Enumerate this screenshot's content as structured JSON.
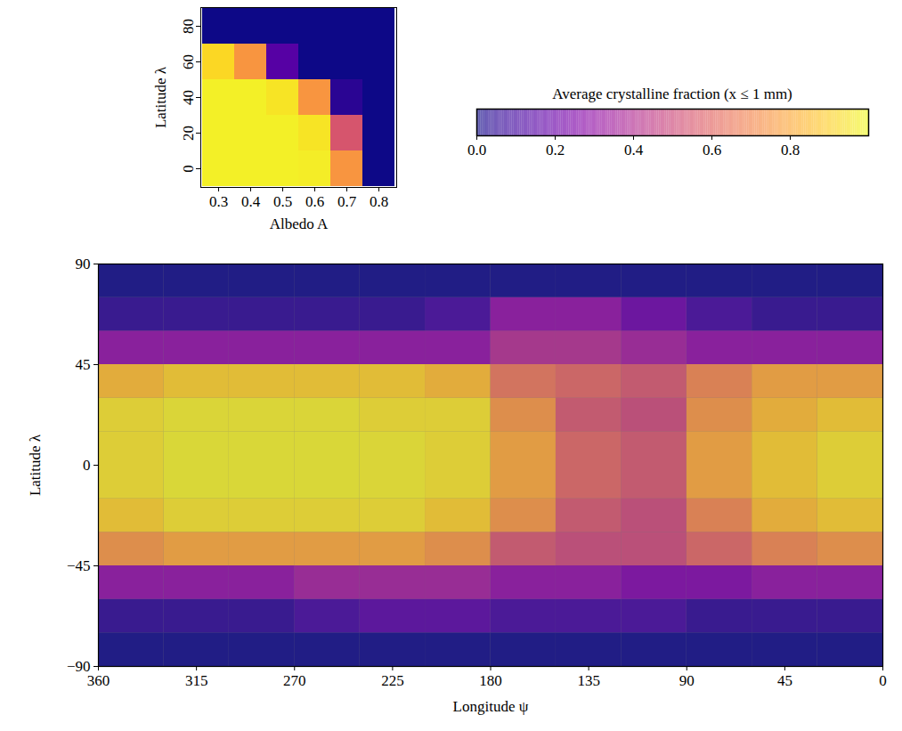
{
  "chart_data": [
    {
      "type": "heatmap",
      "x_label": "Albedo A",
      "y_label": "Latitude λ",
      "x": [
        0.3,
        0.4,
        0.5,
        0.6,
        0.7,
        0.8
      ],
      "y": [
        0,
        20,
        40,
        60,
        80
      ],
      "values": [
        [
          0.98,
          0.98,
          0.98,
          0.97,
          0.75,
          0
        ],
        [
          0.98,
          0.98,
          0.98,
          0.95,
          0.55,
          0
        ],
        [
          0.98,
          0.98,
          0.95,
          0.75,
          0.05,
          0
        ],
        [
          0.92,
          0.75,
          0.15,
          0,
          0,
          0
        ],
        [
          0,
          0,
          0,
          0,
          0,
          0
        ]
      ],
      "colorbar": {
        "label": "Average crystalline fraction (x ≤ 1 mm)",
        "range": [
          0,
          1
        ],
        "ticks": [
          {
            "value": 0,
            "label": "0.0"
          },
          0.2,
          0.4,
          0.6,
          0.8
        ]
      }
    },
    {
      "type": "heatmap",
      "x_label": "Longitude ψ",
      "y_label": "Latitude λ",
      "xlim": [
        360,
        0
      ],
      "xticks": [
        360,
        315,
        270,
        225,
        180,
        135,
        90,
        45,
        0
      ],
      "ylim": [
        -90,
        90
      ],
      "yticks": [
        -90,
        -45,
        0,
        45,
        90
      ],
      "lon_edges": [
        0,
        30,
        60,
        90,
        120,
        150,
        180,
        210,
        240,
        270,
        300,
        330,
        360
      ],
      "lat_edges": [
        -90,
        -75,
        -60,
        -45,
        -30,
        -15,
        0,
        15,
        30,
        45,
        60,
        75,
        90
      ],
      "values": [
        [
          0,
          0,
          0,
          0,
          0,
          0,
          0,
          0,
          0,
          0,
          0,
          0
        ],
        [
          0.05,
          0.05,
          0.05,
          0.1,
          0.1,
          0.1,
          0.15,
          0.15,
          0.1,
          0.05,
          0.05,
          0.05
        ],
        [
          0.3,
          0.3,
          0.25,
          0.25,
          0.3,
          0.3,
          0.35,
          0.35,
          0.35,
          0.3,
          0.3,
          0.3
        ],
        [
          0.75,
          0.7,
          0.6,
          0.5,
          0.5,
          0.55,
          0.75,
          0.8,
          0.8,
          0.8,
          0.8,
          0.75
        ],
        [
          0.9,
          0.85,
          0.7,
          0.5,
          0.55,
          0.75,
          0.9,
          0.95,
          0.95,
          0.95,
          0.95,
          0.9
        ],
        [
          0.95,
          0.9,
          0.8,
          0.55,
          0.6,
          0.8,
          0.95,
          0.97,
          0.98,
          0.98,
          0.98,
          0.95
        ],
        [
          0.95,
          0.9,
          0.8,
          0.55,
          0.6,
          0.8,
          0.95,
          0.97,
          0.98,
          0.98,
          0.98,
          0.95
        ],
        [
          0.9,
          0.85,
          0.75,
          0.5,
          0.55,
          0.75,
          0.95,
          0.95,
          0.97,
          0.97,
          0.97,
          0.95
        ],
        [
          0.8,
          0.8,
          0.7,
          0.55,
          0.6,
          0.65,
          0.85,
          0.9,
          0.9,
          0.9,
          0.9,
          0.85
        ],
        [
          0.3,
          0.3,
          0.3,
          0.35,
          0.4,
          0.4,
          0.3,
          0.3,
          0.3,
          0.3,
          0.3,
          0.3
        ],
        [
          0.05,
          0.05,
          0.1,
          0.2,
          0.3,
          0.3,
          0.1,
          0.05,
          0.05,
          0.05,
          0.05,
          0.05
        ],
        [
          0,
          0,
          0,
          0,
          0,
          0,
          0,
          0,
          0,
          0,
          0,
          0
        ]
      ]
    }
  ]
}
